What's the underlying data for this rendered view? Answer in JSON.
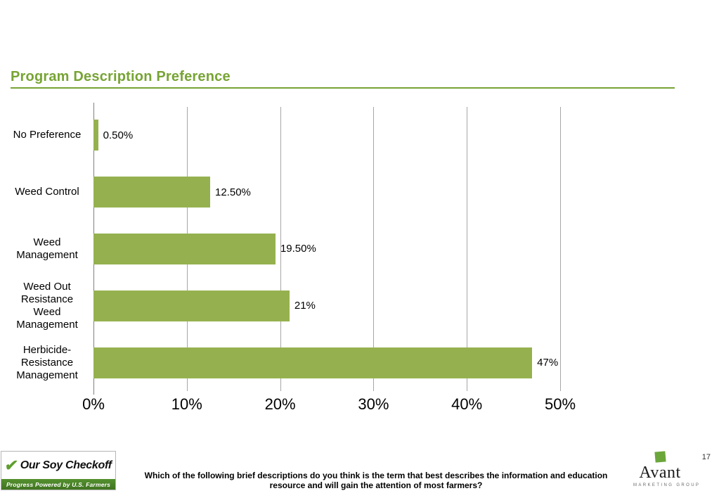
{
  "slide": {
    "title": "Program Description Preference",
    "page_number": "17",
    "footer_question": "Which of the following brief descriptions do you think is the term that best describes the information and education\nresource and will gain the attention of most farmers?"
  },
  "chart_data": {
    "type": "bar",
    "orientation": "horizontal",
    "title": "Program Description Preference",
    "categories": [
      "No Preference",
      "Weed Control",
      "Weed\nManagement",
      "Weed Out\nResistance\nWeed\nManagement",
      "Herbicide-\nResistance\nManagement"
    ],
    "values": [
      0.5,
      12.5,
      19.5,
      21,
      47
    ],
    "data_labels": [
      "0.50%",
      "12.50%",
      "19.50%",
      "21%",
      "47%"
    ],
    "x_ticks": [
      "0%",
      "10%",
      "20%",
      "30%",
      "40%",
      "50%"
    ],
    "xlim": [
      0,
      50
    ],
    "xlabel": "",
    "ylabel": "",
    "grid": true,
    "legend": false,
    "bar_color": "#95b14f"
  },
  "logos": {
    "soy_checkoff": {
      "name": "Our Soy Checkoff",
      "tagline": "Progress Powered by U.S. Farmers"
    },
    "avant": {
      "name": "Avant",
      "subtext": "MARKETING GROUP"
    }
  },
  "colors": {
    "title_green": "#77a434",
    "bar_green": "#95b14f",
    "gridline_gray": "#a6a6a6"
  }
}
